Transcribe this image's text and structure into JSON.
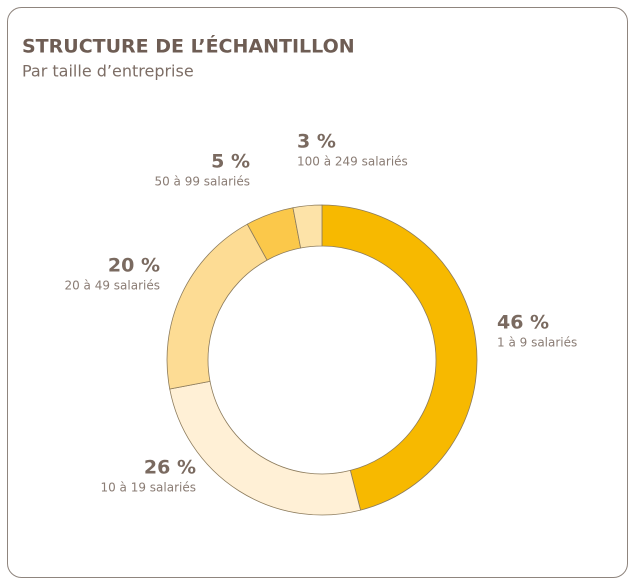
{
  "chart_data": {
    "type": "donut",
    "title": "STRUCTURE DE L’ÉCHANTILLON",
    "subtitle": "Par taille d’entreprise",
    "categories": [
      "1 à 9 salariés",
      "10 à 19 salariés",
      "20 à 49 salariés",
      "50 à 99 salariés",
      "100 à 249 salariés"
    ],
    "values": [
      46,
      26,
      20,
      5,
      3
    ],
    "value_labels": [
      "46 %",
      "26 %",
      "20 %",
      "5 %",
      "3 %"
    ],
    "colors": [
      "#f7b900",
      "#fff0d6",
      "#fddc94",
      "#fbc84a",
      "#fde3a8"
    ]
  }
}
